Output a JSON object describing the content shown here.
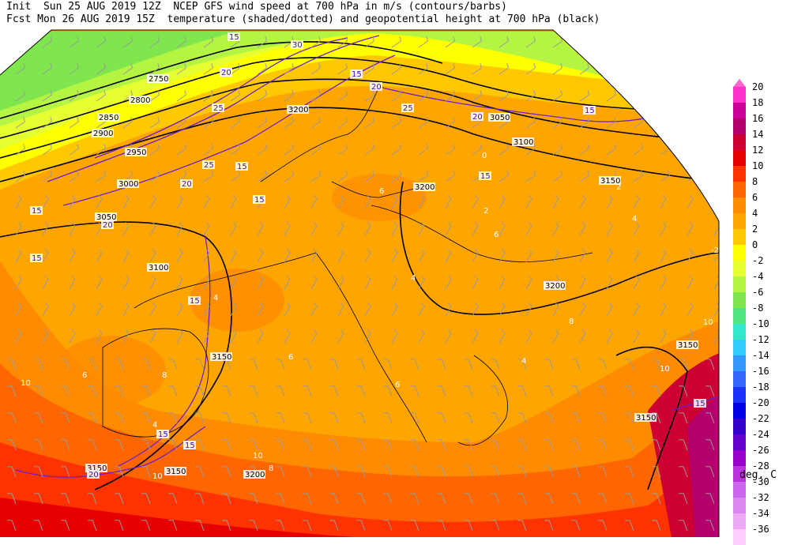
{
  "header": {
    "line1": "Init  Sun 25 AUG 2019 12Z  NCEP GFS wind speed at 700 hPa in m/s (contours/barbs)",
    "line2": "Fcst Mon 26 AUG 2019 15Z  temperature (shaded/dotted) and geopotential height at 700 hPa (black)"
  },
  "legend": {
    "units": "deg. C",
    "labels": [
      "20",
      "18",
      "16",
      "14",
      "12",
      "10",
      "8",
      "6",
      "4",
      "2",
      "0",
      "-2",
      "-4",
      "-6",
      "-8",
      "-10",
      "-12",
      "-14",
      "-16",
      "-18",
      "-20",
      "-22",
      "-24",
      "-26",
      "-28",
      "-30",
      "-32",
      "-34",
      "-36"
    ],
    "colors": [
      "#ff33cc",
      "#cc0099",
      "#b3006b",
      "#cc0033",
      "#e60000",
      "#ff3300",
      "#ff6600",
      "#ff8c00",
      "#ffa500",
      "#ffc800",
      "#ffff00",
      "#e6ff33",
      "#b3f542",
      "#7fe64d",
      "#4de680",
      "#33e6cc",
      "#33ccff",
      "#3399ff",
      "#3366ff",
      "#1a33ff",
      "#0000e6",
      "#3300cc",
      "#6600cc",
      "#9900cc",
      "#bb33dd",
      "#cc66ee",
      "#dd88f2",
      "#eeaaf6",
      "#ffccff"
    ]
  },
  "height_labels": [
    "3150",
    "3200",
    "3200",
    "3150",
    "3100",
    "3050",
    "3000",
    "2950",
    "2900",
    "2850",
    "2800",
    "2750",
    "3150",
    "3150",
    "3200",
    "3100",
    "3050",
    "3150",
    "3150",
    "3200"
  ],
  "wind_labels": [
    "15",
    "20",
    "25",
    "30",
    "15",
    "20",
    "15",
    "25",
    "15",
    "20",
    "15",
    "20",
    "15",
    "15",
    "15",
    "15",
    "20",
    "15",
    "25",
    "15",
    "15",
    "20"
  ],
  "temp_labels": [
    "6",
    "4",
    "2",
    "0",
    "-2",
    "4",
    "6",
    "8",
    "10",
    "10",
    "6",
    "4",
    "8",
    "10",
    "10",
    "6",
    "4",
    "2",
    "4",
    "6",
    "8",
    "10"
  ]
}
